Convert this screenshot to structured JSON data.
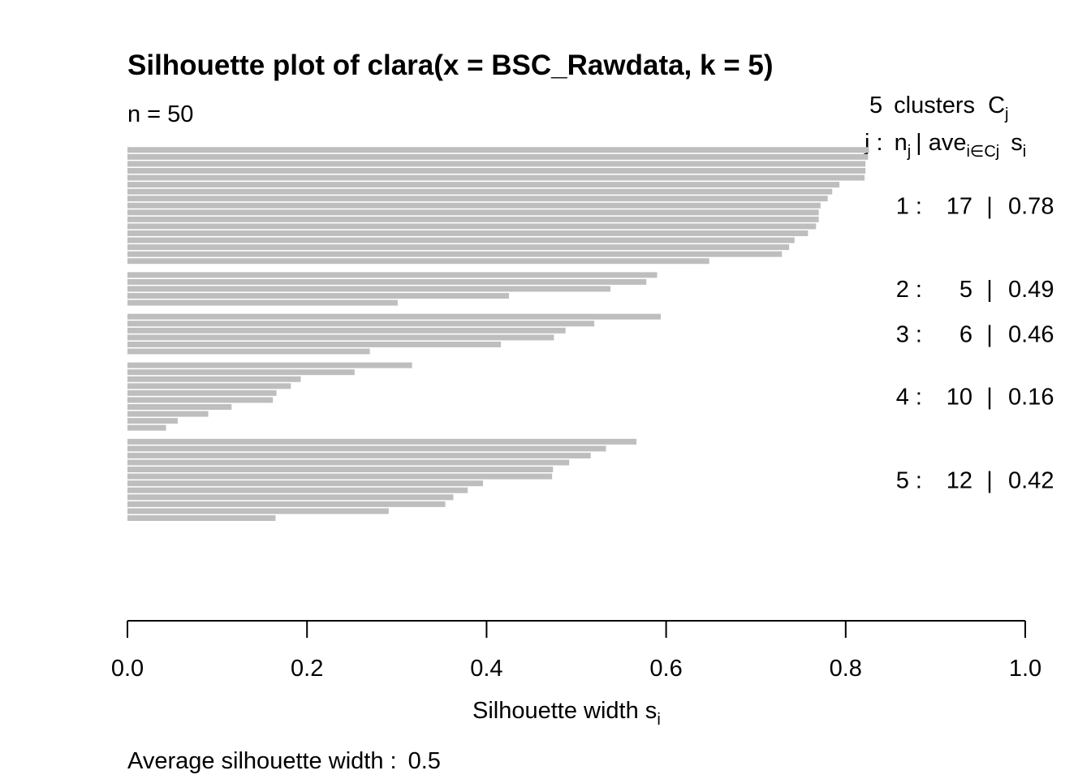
{
  "chart_data": {
    "type": "bar",
    "orientation": "horizontal",
    "title": "Silhouette plot of clara(x = BSC_Rawdata, k = 5)",
    "subtitle": "n = 50",
    "legend_header": {
      "count_text": "5",
      "clusters_label": "clusters",
      "cluster_symbol": "C",
      "cluster_symbol_sub": "j",
      "row_prefix": "j :",
      "n_symbol": "n",
      "n_sub": "j",
      "divider": "|",
      "ave_label": "ave",
      "ave_sub": "i∈Cj",
      "s_symbol": "s",
      "s_sub": "i"
    },
    "xlabel": "Silhouette width s",
    "xlabel_sub": "i",
    "xlim": [
      0,
      1
    ],
    "xticks": [
      "0.0",
      "0.2",
      "0.4",
      "0.6",
      "0.8",
      "1.0"
    ],
    "tick_values": [
      0,
      0.2,
      0.4,
      0.6,
      0.8,
      1.0
    ],
    "footer_label": "Average silhouette width :",
    "footer_value": "0.5",
    "bar_color": "#bebebe",
    "clusters": [
      {
        "id": "1",
        "n": "17",
        "ave": "0.78",
        "values": [
          0.826,
          0.825,
          0.822,
          0.822,
          0.821,
          0.793,
          0.785,
          0.78,
          0.772,
          0.77,
          0.77,
          0.767,
          0.758,
          0.743,
          0.737,
          0.729,
          0.648
        ]
      },
      {
        "id": "2",
        "n": "5",
        "ave": "0.49",
        "values": [
          0.59,
          0.578,
          0.538,
          0.425,
          0.301
        ]
      },
      {
        "id": "3",
        "n": "6",
        "ave": "0.46",
        "values": [
          0.594,
          0.52,
          0.488,
          0.475,
          0.416,
          0.27
        ]
      },
      {
        "id": "4",
        "n": "10",
        "ave": "0.16",
        "values": [
          0.317,
          0.253,
          0.193,
          0.182,
          0.166,
          0.162,
          0.116,
          0.09,
          0.056,
          0.043
        ]
      },
      {
        "id": "5",
        "n": "12",
        "ave": "0.42",
        "values": [
          0.567,
          0.533,
          0.516,
          0.492,
          0.474,
          0.473,
          0.396,
          0.379,
          0.363,
          0.354,
          0.291,
          0.165
        ]
      }
    ]
  }
}
